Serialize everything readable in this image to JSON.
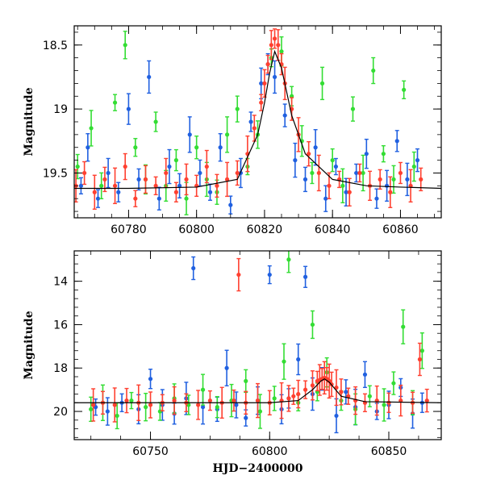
{
  "chart_data": [
    {
      "type": "scatter",
      "title": "",
      "xlabel": "",
      "ylabel": "Magnitude",
      "xlim": [
        60764,
        60872
      ],
      "ylim": [
        19.85,
        18.35
      ],
      "y_inverted": true,
      "x_ticks": [
        60780,
        60800,
        60820,
        60840,
        60860
      ],
      "y_ticks": [
        18.5,
        19,
        19.5
      ],
      "y_tick_labels": [
        "18.5",
        "19",
        "19.5"
      ],
      "model_curve": {
        "color": "#000000",
        "x": [
          60764,
          60780,
          60800,
          60812,
          60818,
          60820,
          60821.5,
          60823,
          60825,
          60828,
          60832,
          60840,
          60850,
          60860,
          60872
        ],
        "y": [
          19.62,
          19.62,
          19.61,
          19.55,
          19.2,
          18.95,
          18.72,
          18.55,
          18.68,
          19.05,
          19.35,
          19.55,
          19.6,
          19.61,
          19.62
        ]
      },
      "series": [
        {
          "color": "#2060e0",
          "x": [
            60766,
            60768,
            60771,
            60774,
            60777,
            60780,
            60783,
            60786,
            60789,
            60792,
            60795,
            60798,
            60801,
            60804,
            60807,
            60810,
            60813,
            60816,
            60819,
            60821,
            60823,
            60826,
            60829,
            60832,
            60835,
            60838,
            60841,
            60844,
            60847,
            60850,
            60853,
            60856,
            60859,
            60862,
            60865
          ],
          "y": [
            19.6,
            19.3,
            19.7,
            19.5,
            19.65,
            19.0,
            19.55,
            18.75,
            19.7,
            19.45,
            19.6,
            19.2,
            19.5,
            19.65,
            19.3,
            19.75,
            19.5,
            19.1,
            18.8,
            18.65,
            18.75,
            19.05,
            19.4,
            19.55,
            19.3,
            19.7,
            19.45,
            19.65,
            19.5,
            19.35,
            19.7,
            19.6,
            19.25,
            19.55,
            19.4
          ]
        },
        {
          "color": "#33dd33",
          "x": [
            60765,
            60769,
            60772,
            60776,
            60779,
            60782,
            60785,
            60788,
            60791,
            60794,
            60797,
            60800,
            60803,
            60806,
            60809,
            60812,
            60815,
            60818,
            60822,
            60825,
            60828,
            60831,
            60834,
            60837,
            60840,
            60843,
            60846,
            60849,
            60852,
            60855,
            60858,
            60861,
            60864
          ],
          "y": [
            19.45,
            19.15,
            19.6,
            18.95,
            18.5,
            19.3,
            19.55,
            19.1,
            19.6,
            19.4,
            19.7,
            19.3,
            19.55,
            19.65,
            19.2,
            19.0,
            19.45,
            19.2,
            18.6,
            18.55,
            18.9,
            19.25,
            19.5,
            18.8,
            19.4,
            19.6,
            19.0,
            19.5,
            18.7,
            19.35,
            19.55,
            18.85,
            19.45
          ]
        },
        {
          "color": "#ff4030",
          "x": [
            60764.5,
            60767,
            60770,
            60773,
            60776,
            60779,
            60782,
            60785,
            60788,
            60791,
            60794,
            60797,
            60800,
            60803,
            60806,
            60809,
            60812,
            60815,
            60817,
            60819,
            60820,
            60821,
            60822,
            60823,
            60824,
            60825,
            60826,
            60828,
            60830,
            60833,
            60836,
            60839,
            60842,
            60845,
            60848,
            60851,
            60854,
            60857,
            60860,
            60863,
            60866
          ],
          "y": [
            19.6,
            19.5,
            19.65,
            19.55,
            19.6,
            19.45,
            19.7,
            19.55,
            19.6,
            19.5,
            19.65,
            19.55,
            19.6,
            19.45,
            19.6,
            19.55,
            19.5,
            19.35,
            19.15,
            18.95,
            18.8,
            18.65,
            18.5,
            18.45,
            18.5,
            18.65,
            18.8,
            19.0,
            19.2,
            19.35,
            19.5,
            19.6,
            19.55,
            19.65,
            19.5,
            19.6,
            19.55,
            19.65,
            19.5,
            19.6,
            19.55
          ]
        }
      ]
    },
    {
      "type": "scatter",
      "title": "",
      "xlabel": "HJD−2400000",
      "ylabel": "Magnitude",
      "xlim": [
        60718,
        60872
      ],
      "ylim": [
        21.3,
        12.6
      ],
      "y_inverted": true,
      "x_ticks": [
        60750,
        60800,
        60850
      ],
      "y_ticks": [
        14,
        16,
        18,
        20
      ],
      "y_tick_labels": [
        "14",
        "16",
        "18",
        "20"
      ],
      "model_curve": {
        "color": "#000000",
        "x": [
          60718,
          60760,
          60800,
          60812,
          60818,
          60821.5,
          60823,
          60825,
          60830,
          60840,
          60872
        ],
        "y": [
          19.6,
          19.6,
          19.6,
          19.5,
          19.0,
          18.6,
          18.5,
          18.65,
          19.3,
          19.55,
          19.6
        ]
      },
      "series": [
        {
          "color": "#2060e0",
          "x": [
            60727,
            60732,
            60738,
            60745,
            60750,
            60755,
            60760,
            60765,
            60768,
            60772,
            60778,
            60782,
            60786,
            60790,
            60795,
            60800,
            60805,
            60808,
            60812,
            60815,
            60818,
            60822,
            60828,
            60832,
            60836,
            60840,
            60845,
            60850,
            60855,
            60860,
            60864
          ],
          "y": [
            19.8,
            20.0,
            19.6,
            19.9,
            18.5,
            19.7,
            20.1,
            19.4,
            13.4,
            19.8,
            19.9,
            18.0,
            19.7,
            20.3,
            19.5,
            13.7,
            19.9,
            19.4,
            17.6,
            13.8,
            19.2,
            18.5,
            20.2,
            19.1,
            19.8,
            18.3,
            20.0,
            19.7,
            18.9,
            20.1,
            19.6
          ]
        },
        {
          "color": "#33dd33",
          "x": [
            60725,
            60730,
            60736,
            60742,
            60748,
            60754,
            60760,
            60766,
            60772,
            60778,
            60784,
            60790,
            60796,
            60802,
            60806,
            60808,
            60812,
            60818,
            60820,
            60824,
            60830,
            60836,
            60842,
            60848,
            60852,
            60856,
            60860,
            60864
          ],
          "y": [
            19.9,
            19.6,
            20.2,
            19.5,
            19.8,
            20.0,
            19.4,
            19.7,
            19.0,
            19.8,
            19.5,
            18.6,
            20.0,
            19.4,
            17.7,
            13.0,
            19.6,
            16.0,
            19.1,
            18.2,
            19.5,
            19.9,
            19.3,
            19.7,
            18.7,
            16.1,
            19.6,
            17.2
          ]
        },
        {
          "color": "#ff4030",
          "x": [
            60726,
            60730,
            60735,
            60740,
            60745,
            60750,
            60755,
            60760,
            60765,
            60770,
            60775,
            60780,
            60785,
            60787,
            60790,
            60795,
            60800,
            60805,
            60808,
            60810,
            60812,
            60815,
            60818,
            60820,
            60821,
            60822,
            60823,
            60824,
            60825,
            60826,
            60828,
            60830,
            60833,
            60836,
            60840,
            60845,
            60850,
            60855,
            60860,
            60863,
            60866
          ],
          "y": [
            19.7,
            19.6,
            19.7,
            19.5,
            19.6,
            19.7,
            19.6,
            19.5,
            19.6,
            19.7,
            19.5,
            19.6,
            19.5,
            13.7,
            19.6,
            19.5,
            19.6,
            19.5,
            19.4,
            19.3,
            19.2,
            19.0,
            18.8,
            18.6,
            18.55,
            18.5,
            18.45,
            18.5,
            18.6,
            18.75,
            18.9,
            19.1,
            19.3,
            19.5,
            19.6,
            19.5,
            19.6,
            19.5,
            19.6,
            17.6,
            19.5
          ]
        }
      ]
    }
  ]
}
